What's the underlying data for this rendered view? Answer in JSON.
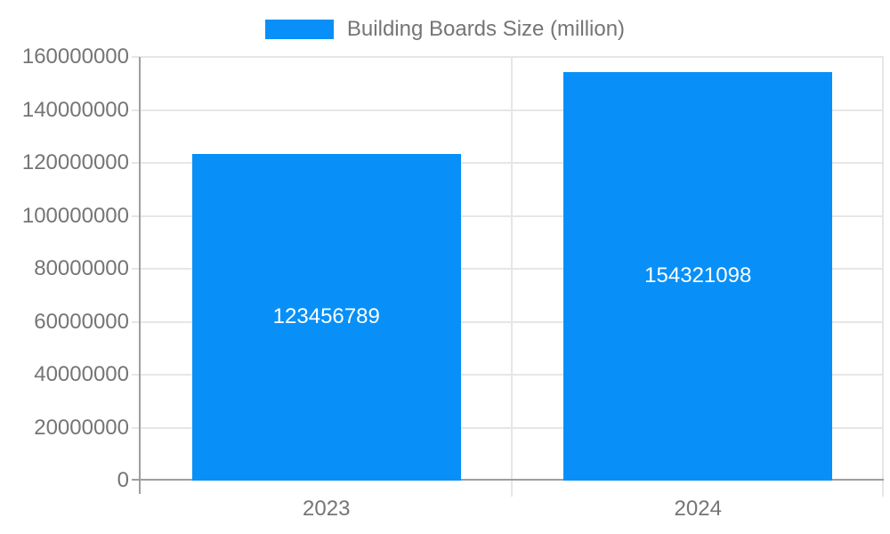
{
  "chart_data": {
    "type": "bar",
    "title": "Building Boards Size (million)",
    "categories": [
      "2023",
      "2024"
    ],
    "series": [
      {
        "name": "Building Boards Size (million)",
        "values": [
          123456789,
          154321098
        ]
      }
    ],
    "value_labels": [
      "123456789",
      "154321098"
    ],
    "ylim": [
      0,
      160000000
    ],
    "ytick_step": 20000000,
    "ytick_labels": [
      "0",
      "20000000",
      "40000000",
      "60000000",
      "80000000",
      "100000000",
      "120000000",
      "140000000",
      "160000000"
    ],
    "xlabel": "",
    "ylabel": "",
    "grid": true,
    "legend_position": "top-center",
    "colors": {
      "bar": "#0890f8",
      "grid_line": "#e6e6e6",
      "axis_line": "#9e9e9e",
      "tick_text": "#757575",
      "value_label_text": "#ffffff",
      "background": "#ffffff"
    }
  }
}
